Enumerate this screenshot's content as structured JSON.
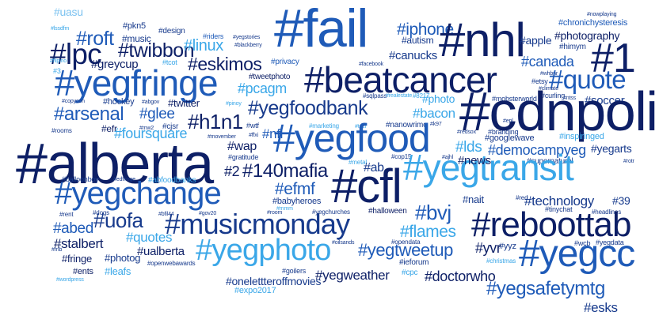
{
  "palette": {
    "navy": "#0d1f66",
    "dark_blue": "#173a8c",
    "royal_blue": "#1f5bb8",
    "medium_blue": "#2f86d8",
    "sky_blue": "#3aa7e8",
    "light_blue": "#7dc3f0",
    "background": "#ffffff"
  },
  "tags": [
    "#uasu",
    "#fail",
    "#nowplaying",
    "#chronichysteresis",
    "#iphone",
    "#nhl",
    "#lssdfm",
    "#pkn5",
    "#design",
    "#roft",
    "#music",
    "#riders",
    "#yegstories",
    "#autism",
    "#apple",
    "#photography",
    "#blackberry",
    "#lpc",
    "#twibbon",
    "#linux",
    "#himym",
    "#canucks",
    "#1",
    "#flipino",
    "#greycup",
    "#tcot",
    "#eskimos",
    "#privacy",
    "#facebook",
    "#canada",
    "#3",
    "#beatcancer",
    "#yegfringe",
    "#tweetphoto",
    "#whbnr",
    "#quote",
    "#etsy",
    "#pcagm",
    "#sqlpass",
    "#realestate",
    "#8217",
    "#climate",
    "#photo",
    "#copycon",
    "#hockey",
    "#abgov",
    "#twitter",
    "#pinoy",
    "#mobsterworld",
    "#curling",
    "#ntss",
    "#soccer",
    "#arsenal",
    "#yegfoodbank",
    "#cdnpoli",
    "#glee",
    "#bacon",
    "#h1n1",
    "#wtf",
    "#marketing",
    "#tacl",
    "#nanowrimo",
    "#k97",
    "#epl",
    "#efr",
    "#mw2",
    "#cjsr",
    "#googlewave",
    "#rooms",
    "#foursquare",
    "#movember",
    "#ffxi",
    "#nfl",
    "#redsox",
    "#branding",
    "#inspiringed",
    "#yegfood",
    "#wap",
    "#gratitude",
    "#lds",
    "#democampyeg",
    "#yegarts",
    "#alberta",
    "#cop15",
    "#ajhl",
    "#supernatural",
    "#rotr",
    "#metal",
    "#yegtransit",
    "#2",
    "#140mafia",
    "#ab",
    "#news",
    "#balloonboy",
    "#edfringe",
    "#abfoodbanks",
    "#cfl",
    "#yegchange",
    "#efmf",
    "#nait",
    "#red",
    "#technology",
    "#39",
    "#babyheroes",
    "#mmm",
    "#dogs",
    "#bfil44",
    "#gov20",
    "#room",
    "#yegchurches",
    "#halloween",
    "#tinychat",
    "#headlines",
    "#rent",
    "#bvj",
    "#uofa",
    "#musicmonday",
    "#flames",
    "#abed",
    "#quotes",
    "#reboottab",
    "#stalbert",
    "#oilsands",
    "#opendata",
    "#yvr",
    "#yyz",
    "#wcb",
    "#yegdata",
    "#mb",
    "#ualberta",
    "#yegphoto",
    "#yegtweetup",
    "#fringe",
    "#photog",
    "#openwebawards",
    "#ieforum",
    "#christmas",
    "#yegcc",
    "#ents",
    "#leafs",
    "#wordpress",
    "#goilers",
    "#cpc",
    "#onelettteroffmovies",
    "#yegweather",
    "#doctorwho",
    "#yegsafetymtg",
    "#expo2017",
    "#esks"
  ]
}
